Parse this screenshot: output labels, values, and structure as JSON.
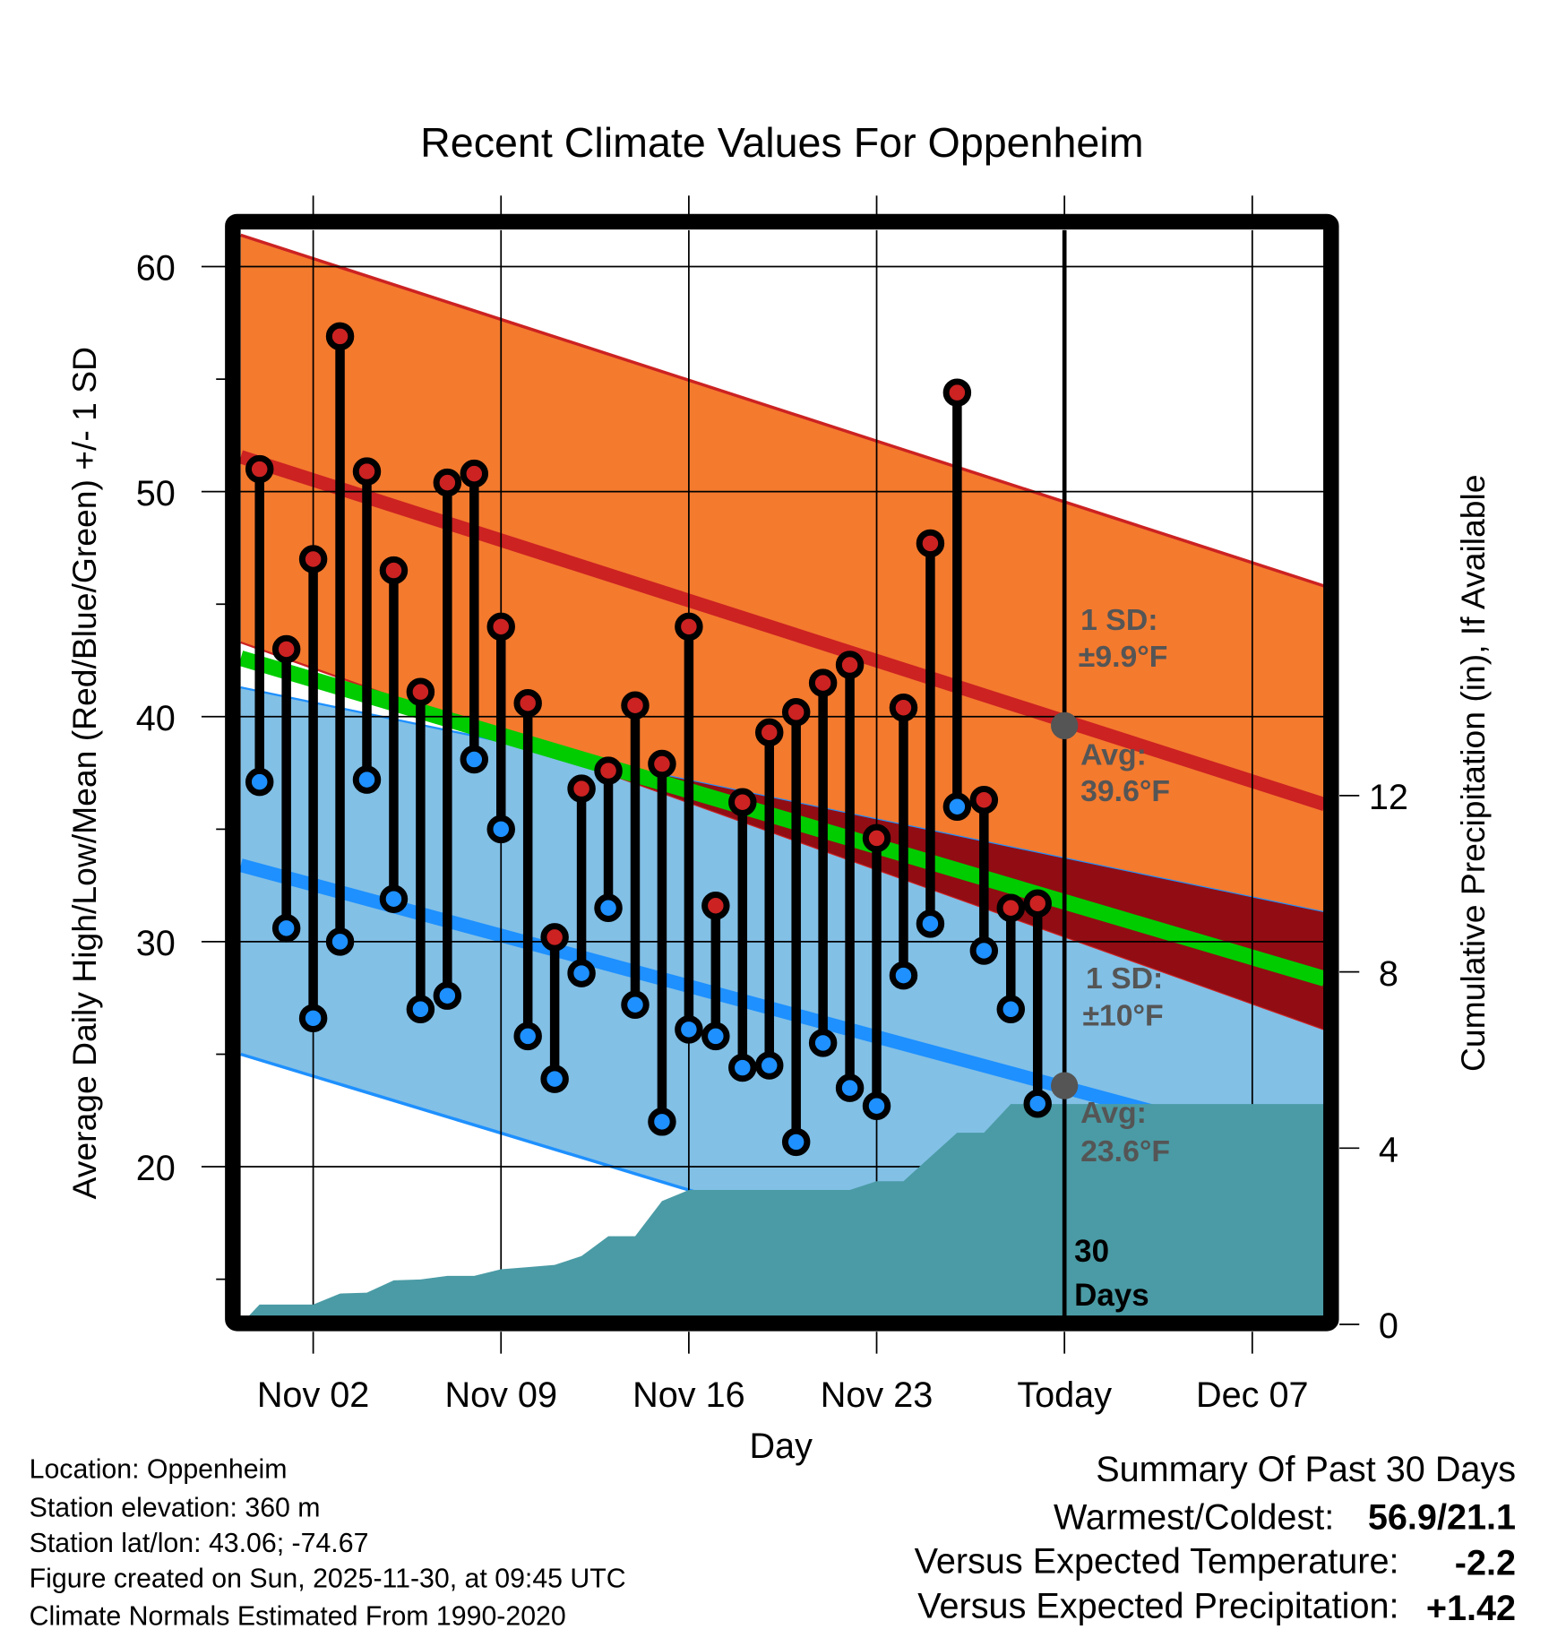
{
  "chart_data": {
    "type": "line",
    "title": "Recent Climate Values For Oppenheim",
    "xlabel": "Day",
    "ylabel": "Average Daily High/Low/Mean (Red/Blue/Green) +/- 1 SD",
    "y2label": "Cumulative Precipitation (in), If Available",
    "x_units": "days since Nov 01",
    "xlim": [
      -1.7,
      38.7
    ],
    "ylim": [
      13.4,
      61.6
    ],
    "y2lim": [
      -0.19,
      24.8
    ],
    "x_ticks": [
      {
        "x": 1,
        "label": "Nov 02"
      },
      {
        "x": 8,
        "label": "Nov 09"
      },
      {
        "x": 15,
        "label": "Nov 16"
      },
      {
        "x": 22,
        "label": "Nov 23"
      },
      {
        "x": 29,
        "label": "Today"
      },
      {
        "x": 36,
        "label": "Dec 07"
      }
    ],
    "y_ticks": [
      {
        "v": 20,
        "label": "20"
      },
      {
        "v": 30,
        "label": "30"
      },
      {
        "v": 40,
        "label": "40"
      },
      {
        "v": 50,
        "label": "50"
      },
      {
        "v": 60,
        "label": "60"
      }
    ],
    "y_minor_ticks": [
      15,
      25,
      35,
      45,
      55
    ],
    "y2_ticks": [
      {
        "v": 0,
        "label": "0"
      },
      {
        "v": 4,
        "label": "4"
      },
      {
        "v": 8,
        "label": "8"
      },
      {
        "v": 12,
        "label": "12"
      }
    ],
    "grid": true,
    "days": [
      -1,
      0,
      1,
      2,
      3,
      4,
      5,
      6,
      7,
      8,
      9,
      10,
      11,
      12,
      13,
      14,
      15,
      16,
      17,
      18,
      19,
      20,
      21,
      22,
      23,
      24,
      25,
      26,
      27,
      28
    ],
    "highs": [
      51.0,
      43.0,
      47.0,
      56.9,
      50.9,
      46.5,
      41.1,
      50.4,
      50.8,
      44.0,
      40.6,
      30.2,
      36.8,
      37.6,
      40.5,
      37.9,
      44.0,
      31.6,
      36.2,
      39.3,
      40.2,
      41.5,
      42.3,
      34.6,
      40.4,
      47.7,
      54.4,
      36.3,
      31.5,
      31.7
    ],
    "lows": [
      37.1,
      30.6,
      26.6,
      30.0,
      37.2,
      31.9,
      27.0,
      27.6,
      38.1,
      35.0,
      25.8,
      23.9,
      28.6,
      31.5,
      27.2,
      22.0,
      26.1,
      25.8,
      24.4,
      24.5,
      21.1,
      25.5,
      23.5,
      22.7,
      28.5,
      30.8,
      36.0,
      29.6,
      27.0,
      22.8
    ],
    "normals": {
      "x": [
        -1.7,
        38.7
      ],
      "high_upper": [
        61.4,
        45.8
      ],
      "high_mean": [
        51.55,
        36.1
      ],
      "high_lower": [
        43.3,
        26.1
      ],
      "low_upper": [
        41.3,
        31.3
      ],
      "low_mean": [
        33.4,
        20.4
      ],
      "low_lower": [
        25.0,
        10.4
      ],
      "mean": [
        42.6,
        28.35
      ]
    },
    "precip": {
      "x": [
        -1.7,
        -1,
        1,
        2,
        3,
        4,
        5,
        6,
        7,
        8,
        9,
        10,
        11,
        12,
        13,
        14,
        15,
        21,
        22,
        23,
        24,
        25,
        26,
        27,
        28,
        38.7
      ],
      "values": [
        0,
        0.45,
        0.45,
        0.7,
        0.72,
        1.0,
        1.02,
        1.1,
        1.1,
        1.25,
        1.3,
        1.35,
        1.55,
        2.0,
        2.0,
        2.8,
        3.05,
        3.05,
        3.25,
        3.25,
        3.8,
        4.35,
        4.35,
        5.0,
        5.0,
        5.0
      ]
    },
    "today_x": 29,
    "annotations": {
      "high_sd_label": "1 SD:",
      "high_sd_value": "±9.9°F",
      "high_avg_label": "Avg:",
      "high_avg_value": "39.6°F",
      "high_avg": 39.6,
      "low_sd_label": "1 SD:",
      "low_sd_value": "±10°F",
      "low_avg_label": "Avg:",
      "low_avg_value": "23.6°F",
      "low_avg": 23.6,
      "days_num": "30",
      "days_word": "Days"
    },
    "colors": {
      "high_band": "#F47A2E",
      "high_line": "#CC2222",
      "overlap": "#910D13",
      "low_band": "#82C0E6",
      "low_line": "#1E90FF",
      "mean_line": "#00CC00",
      "precip": "#4A9BA5",
      "marker_high": "#CC2222",
      "marker_low": "#1E90FF",
      "avg_dot": "#555555"
    }
  },
  "footer": {
    "location": "Location: Oppenheim",
    "elevation": "Station elevation: 360 m",
    "latlon": "Station lat/lon: 43.06; -74.67",
    "created": "Figure created on Sun, 2025-11-30, at 09:45 UTC",
    "normals": "Climate Normals Estimated From 1990-2020"
  },
  "summary": {
    "title": "Summary Of Past 30 Days",
    "warm_cold_label": "Warmest/Coldest:",
    "warm_cold_value": "56.9/21.1",
    "temp_label": "Versus Expected Temperature:",
    "temp_value": "-2.2",
    "temp_color": "#1E90FF",
    "precip_label": "Versus Expected Precipitation:",
    "precip_value": "+1.42",
    "precip_color": "#00CC00"
  }
}
